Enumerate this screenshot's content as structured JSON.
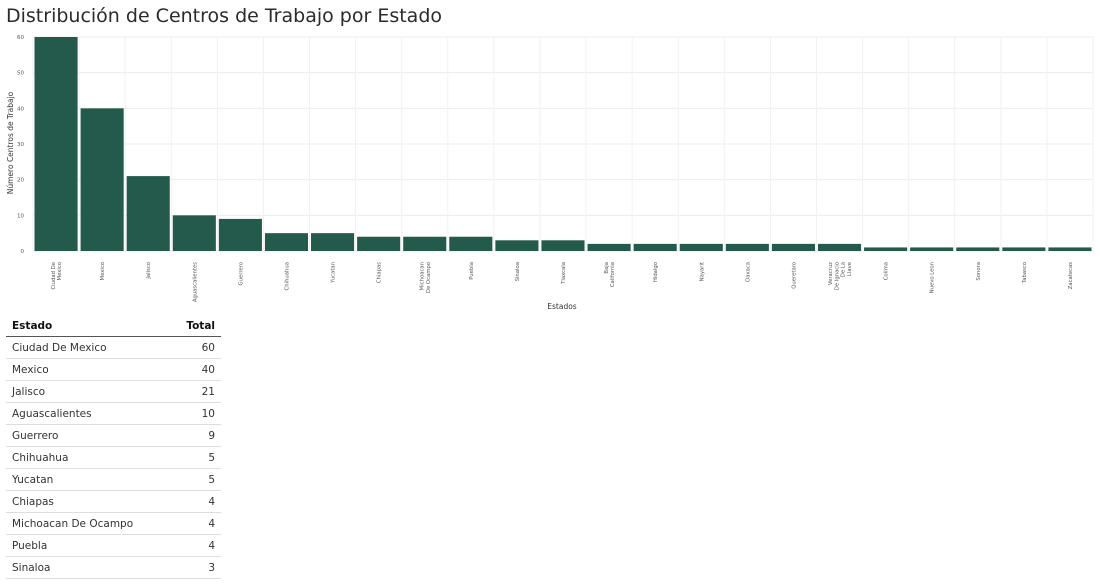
{
  "title": "Distribución de Centros de Trabajo por Estado",
  "chart_data": {
    "type": "bar",
    "title": "Distribución de Centros de Trabajo por Estado",
    "xlabel": "Estados",
    "ylabel": "Número Centros de Trabajo",
    "ylim": [
      0,
      60
    ],
    "yticks": [
      0,
      10,
      20,
      30,
      40,
      50,
      60
    ],
    "grid": true,
    "bar_color": "#235a4b",
    "categories": [
      "Ciudad De Mexico",
      "Mexico",
      "Jalisco",
      "Aguascalientes",
      "Guerrero",
      "Chihuahua",
      "Yucatan",
      "Chiapas",
      "Michoacan De Ocampo",
      "Puebla",
      "Sinaloa",
      "Tlaxcala",
      "Baja California",
      "Hidalgo",
      "Nayarit",
      "Oaxaca",
      "Queretaro",
      "Veracruz De Ignacio De La Llave",
      "Colima",
      "Nuevo Leon",
      "Sonora",
      "Tabasco",
      "Zacatecas"
    ],
    "tick_labels": [
      [
        "Ciudad De",
        "Mexico"
      ],
      [
        "Mexico"
      ],
      [
        "Jalisco"
      ],
      [
        "Aguascalientes"
      ],
      [
        "Guerrero"
      ],
      [
        "Chihuahua"
      ],
      [
        "Yucatan"
      ],
      [
        "Chiapas"
      ],
      [
        "Michoacan",
        "De Ocampo"
      ],
      [
        "Puebla"
      ],
      [
        "Sinaloa"
      ],
      [
        "Tlaxcala"
      ],
      [
        "Baja",
        "California"
      ],
      [
        "Hidalgo"
      ],
      [
        "Nayarit"
      ],
      [
        "Oaxaca"
      ],
      [
        "Queretaro"
      ],
      [
        "Veracruz",
        "De Ignacio",
        "De La",
        "Llave"
      ],
      [
        "Colima"
      ],
      [
        "Nuevo Leon"
      ],
      [
        "Sonora"
      ],
      [
        "Tabasco"
      ],
      [
        "Zacatecas"
      ]
    ],
    "values": [
      60,
      40,
      21,
      10,
      9,
      5,
      5,
      4,
      4,
      4,
      3,
      3,
      2,
      2,
      2,
      2,
      2,
      2,
      1,
      1,
      1,
      1,
      1
    ]
  },
  "table": {
    "headers": {
      "estado": "Estado",
      "total": "Total"
    },
    "rows": [
      {
        "estado": "Ciudad De Mexico",
        "total": "60"
      },
      {
        "estado": "Mexico",
        "total": "40"
      },
      {
        "estado": "Jalisco",
        "total": "21"
      },
      {
        "estado": "Aguascalientes",
        "total": "10"
      },
      {
        "estado": "Guerrero",
        "total": "9"
      },
      {
        "estado": "Chihuahua",
        "total": "5"
      },
      {
        "estado": "Yucatan",
        "total": "5"
      },
      {
        "estado": "Chiapas",
        "total": "4"
      },
      {
        "estado": "Michoacan De Ocampo",
        "total": "4"
      },
      {
        "estado": "Puebla",
        "total": "4"
      },
      {
        "estado": "Sinaloa",
        "total": "3"
      }
    ]
  }
}
